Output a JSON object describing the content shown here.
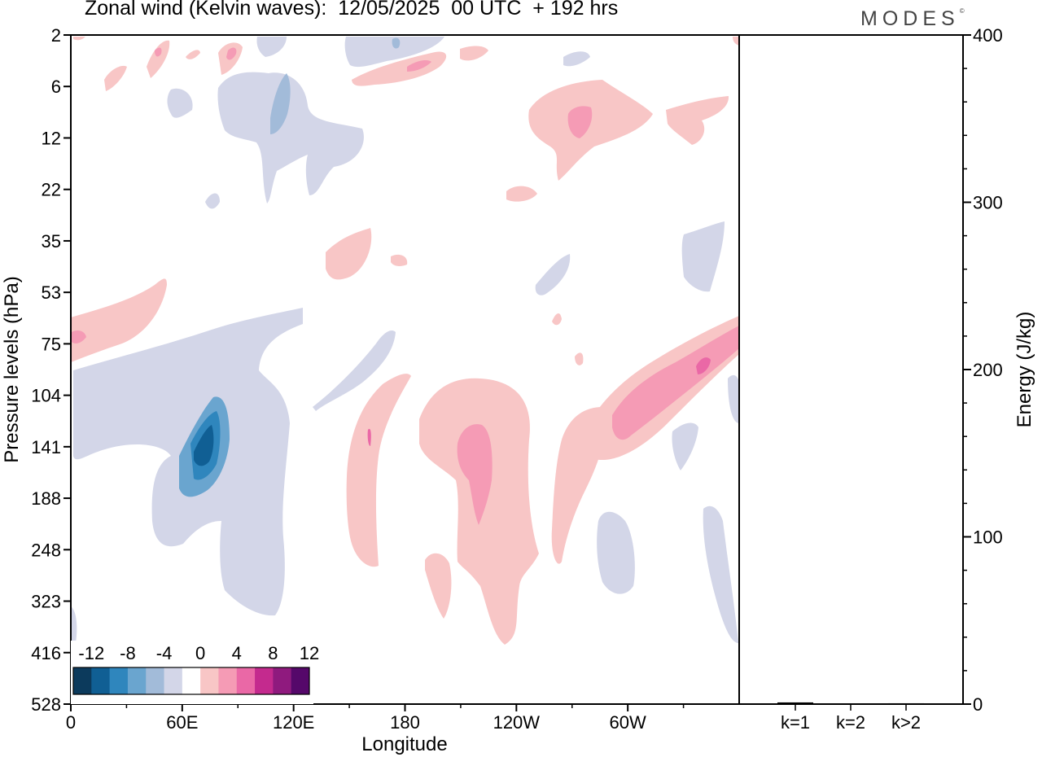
{
  "title": "Zonal wind (Kelvin waves):  12/05/2025  00 UTC  + 192 hrs",
  "logo_text": "MODES",
  "logo_mark": "©",
  "chart_data": [
    {
      "type": "heatmap",
      "panel": "main",
      "title": "Zonal wind (Kelvin waves):  12/05/2025  00 UTC  + 192 hrs",
      "xlabel": "Longitude",
      "ylabel": "Pressure levels (hPa)",
      "x_ticks": [
        "0",
        "60E",
        "120E",
        "180",
        "120W",
        "60W"
      ],
      "x_tick_values": [
        0,
        60,
        120,
        180,
        240,
        300
      ],
      "xlim": [
        0,
        360
      ],
      "y_ticks": [
        "2",
        "6",
        "12",
        "22",
        "35",
        "53",
        "75",
        "104",
        "141",
        "188",
        "248",
        "323",
        "416",
        "528"
      ],
      "colorbar": {
        "labels": [
          "-12",
          "-8",
          "-4",
          "0",
          "4",
          "8",
          "12"
        ],
        "colors": [
          "#0c3a5c",
          "#105f94",
          "#2f86bd",
          "#6aa5cf",
          "#a2bbd9",
          "#d3d6e8",
          "#ffffff",
          "#f8c6c6",
          "#f59bb5",
          "#ea68a6",
          "#c42a8e",
          "#8f1a7e",
          "#55086a"
        ]
      },
      "regions": [
        {
          "level": "-4",
          "color": "#d3d6e8",
          "lon_range": [
            30,
            130
          ],
          "p_range": [
            75,
            323
          ],
          "note": "main negative anomaly over Indian Ocean"
        },
        {
          "level": "-8",
          "color": "#6aa5cf",
          "lon_range": [
            58,
            86
          ],
          "p_range": [
            104,
            188
          ]
        },
        {
          "level": "-12",
          "color": "#105f94",
          "lon_range": [
            64,
            80
          ],
          "p_range": [
            120,
            170
          ]
        },
        {
          "level": "4",
          "color": "#f8c6c6",
          "lon_range": [
            150,
            270
          ],
          "p_range": [
            104,
            416
          ]
        },
        {
          "level": "8",
          "color": "#f59bb5",
          "lon_range": [
            210,
            228
          ],
          "p_range": [
            120,
            230
          ]
        },
        {
          "level": "4",
          "color": "#f8c6c6",
          "lon_range": [
            285,
            360
          ],
          "p_range": [
            75,
            141
          ]
        },
        {
          "level": "8",
          "color": "#f59bb5",
          "lon_range": [
            293,
            355
          ],
          "p_range": [
            80,
            141
          ]
        },
        {
          "level": "12",
          "color": "#ea68a6",
          "lon_range": [
            338,
            350
          ],
          "p_range": [
            90,
            104
          ]
        },
        {
          "level": "4",
          "color": "#f8c6c6",
          "lon_range": [
            0,
            50
          ],
          "p_range": [
            53,
            90
          ]
        },
        {
          "level": "-4",
          "color": "#d3d6e8",
          "lon_range": [
            75,
            160
          ],
          "p_range": [
            2,
            22
          ]
        },
        {
          "level": "4",
          "color": "#f8c6c6",
          "lon_range": [
            245,
            315
          ],
          "p_range": [
            6,
            17
          ]
        }
      ]
    },
    {
      "type": "bar",
      "panel": "energy",
      "ylabel": "Energy (J/kg)",
      "categories": [
        "k=1",
        "k=2",
        "k>2"
      ],
      "values": [
        1,
        0.3,
        0.5
      ],
      "ylim": [
        0,
        400
      ],
      "y_ticks": [
        "0",
        "100",
        "200",
        "300",
        "400"
      ]
    }
  ]
}
